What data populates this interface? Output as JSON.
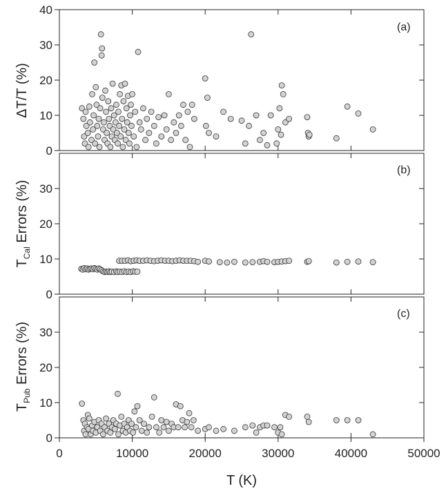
{
  "chart_data": [
    {
      "type": "scatter",
      "panel_label": "(a)",
      "ylabel_main": "ΔT/T (%)",
      "ylim": [
        0,
        40
      ],
      "yticks": [
        0,
        10,
        20,
        30,
        40
      ],
      "xlim": [
        0,
        50000
      ],
      "points": [
        [
          3100,
          12
        ],
        [
          3300,
          9
        ],
        [
          3400,
          4
        ],
        [
          3500,
          2
        ],
        [
          3600,
          11
        ],
        [
          3700,
          7
        ],
        [
          3900,
          5
        ],
        [
          4000,
          1
        ],
        [
          4100,
          12.5
        ],
        [
          4200,
          8
        ],
        [
          4400,
          3
        ],
        [
          4500,
          16
        ],
        [
          4600,
          6
        ],
        [
          4700,
          10
        ],
        [
          4800,
          25
        ],
        [
          4900,
          2
        ],
        [
          5000,
          18
        ],
        [
          5100,
          13
        ],
        [
          5200,
          7
        ],
        [
          5300,
          4
        ],
        [
          5400,
          9
        ],
        [
          5500,
          1
        ],
        [
          5600,
          12
        ],
        [
          5700,
          33
        ],
        [
          5800,
          27
        ],
        [
          5850,
          29
        ],
        [
          5900,
          15
        ],
        [
          6000,
          6
        ],
        [
          6100,
          8
        ],
        [
          6200,
          3
        ],
        [
          6300,
          17
        ],
        [
          6400,
          11
        ],
        [
          6500,
          5
        ],
        [
          6600,
          2
        ],
        [
          6700,
          14
        ],
        [
          6800,
          9
        ],
        [
          6900,
          7
        ],
        [
          7000,
          1
        ],
        [
          7100,
          12
        ],
        [
          7200,
          4
        ],
        [
          7300,
          19
        ],
        [
          7400,
          6
        ],
        [
          7500,
          10
        ],
        [
          7600,
          3
        ],
        [
          7700,
          8
        ],
        [
          7800,
          13
        ],
        [
          7900,
          5
        ],
        [
          8000,
          2
        ],
        [
          8100,
          11
        ],
        [
          8200,
          7
        ],
        [
          8300,
          16
        ],
        [
          8400,
          4
        ],
        [
          8500,
          18.5
        ],
        [
          8600,
          9
        ],
        [
          8700,
          1
        ],
        [
          8800,
          14
        ],
        [
          8900,
          6
        ],
        [
          9000,
          19
        ],
        [
          9100,
          3
        ],
        [
          9200,
          12
        ],
        [
          9300,
          8
        ],
        [
          9400,
          15.5
        ],
        [
          9500,
          5
        ],
        [
          9600,
          2
        ],
        [
          9700,
          10
        ],
        [
          9800,
          13
        ],
        [
          9900,
          7
        ],
        [
          10000,
          16
        ],
        [
          10200,
          4
        ],
        [
          10400,
          11
        ],
        [
          10600,
          1
        ],
        [
          10800,
          28
        ],
        [
          11000,
          8
        ],
        [
          11200,
          6
        ],
        [
          11500,
          12
        ],
        [
          11800,
          3
        ],
        [
          12000,
          9
        ],
        [
          12300,
          5
        ],
        [
          12600,
          11
        ],
        [
          13000,
          7
        ],
        [
          13300,
          2
        ],
        [
          13600,
          9.5
        ],
        [
          14000,
          4
        ],
        [
          14400,
          10
        ],
        [
          14700,
          6
        ],
        [
          15000,
          16
        ],
        [
          15300,
          3
        ],
        [
          15700,
          8
        ],
        [
          16000,
          5
        ],
        [
          16400,
          10
        ],
        [
          16700,
          7
        ],
        [
          17000,
          13
        ],
        [
          17300,
          3
        ],
        [
          17600,
          11
        ],
        [
          17900,
          1
        ],
        [
          18200,
          13
        ],
        [
          18500,
          9
        ],
        [
          20000,
          20.5
        ],
        [
          20100,
          7
        ],
        [
          20300,
          15
        ],
        [
          20500,
          5
        ],
        [
          21500,
          4
        ],
        [
          22500,
          11
        ],
        [
          23500,
          9
        ],
        [
          25000,
          8.5
        ],
        [
          25500,
          2
        ],
        [
          26000,
          7
        ],
        [
          26300,
          33
        ],
        [
          27000,
          10
        ],
        [
          27500,
          3
        ],
        [
          28000,
          5
        ],
        [
          28500,
          1.5
        ],
        [
          29000,
          10
        ],
        [
          29800,
          2
        ],
        [
          30000,
          6
        ],
        [
          30200,
          12
        ],
        [
          30400,
          4.5
        ],
        [
          30500,
          18.5
        ],
        [
          30700,
          16
        ],
        [
          31000,
          8
        ],
        [
          31500,
          9
        ],
        [
          34000,
          9.5
        ],
        [
          34100,
          5
        ],
        [
          34200,
          4
        ],
        [
          34300,
          4.5
        ],
        [
          38000,
          3.5
        ],
        [
          39500,
          12.5
        ],
        [
          41000,
          10.5
        ],
        [
          43000,
          6
        ]
      ]
    },
    {
      "type": "scatter",
      "panel_label": "(b)",
      "ylabel_main": "T",
      "ylabel_sub": "Cal",
      "ylabel_rest": " Errors (%)",
      "ylim": [
        0,
        40
      ],
      "yticks": [
        0,
        10,
        20,
        30
      ],
      "xlim": [
        0,
        50000
      ],
      "points": [
        [
          3000,
          7.2
        ],
        [
          3200,
          7
        ],
        [
          3400,
          7.4
        ],
        [
          3600,
          7.1
        ],
        [
          3800,
          7.3
        ],
        [
          4000,
          7
        ],
        [
          4200,
          7.2
        ],
        [
          4400,
          7.3
        ],
        [
          4600,
          7.1
        ],
        [
          4800,
          7.4
        ],
        [
          5000,
          7.2
        ],
        [
          5200,
          7
        ],
        [
          5400,
          7.3
        ],
        [
          5600,
          7.1
        ],
        [
          5800,
          6.8
        ],
        [
          6000,
          6.5
        ],
        [
          6200,
          6.3
        ],
        [
          6400,
          6.4
        ],
        [
          6600,
          6.3
        ],
        [
          6800,
          6.5
        ],
        [
          7000,
          6.3
        ],
        [
          7200,
          6.4
        ],
        [
          7500,
          6.3
        ],
        [
          7800,
          6.5
        ],
        [
          8000,
          6.3
        ],
        [
          8300,
          6.4
        ],
        [
          8600,
          6.3
        ],
        [
          8900,
          6.5
        ],
        [
          9200,
          6.3
        ],
        [
          9500,
          6.4
        ],
        [
          9800,
          6.3
        ],
        [
          10100,
          6.5
        ],
        [
          10400,
          6.4
        ],
        [
          10700,
          6.4
        ],
        [
          8200,
          9.5
        ],
        [
          8600,
          9.5
        ],
        [
          9000,
          9.5
        ],
        [
          9400,
          9.6
        ],
        [
          9800,
          9.4
        ],
        [
          10200,
          9.5
        ],
        [
          10600,
          9.6
        ],
        [
          11000,
          9.5
        ],
        [
          11500,
          9.5
        ],
        [
          12000,
          9.6
        ],
        [
          12500,
          9.5
        ],
        [
          13000,
          9.4
        ],
        [
          13500,
          9.5
        ],
        [
          14000,
          9.6
        ],
        [
          14500,
          9.5
        ],
        [
          15000,
          9.5
        ],
        [
          15500,
          9.4
        ],
        [
          16000,
          9.5
        ],
        [
          16500,
          9.6
        ],
        [
          17000,
          9.5
        ],
        [
          17500,
          9.5
        ],
        [
          18000,
          9.5
        ],
        [
          18500,
          9.4
        ],
        [
          19000,
          9.2
        ],
        [
          20000,
          9.5
        ],
        [
          20500,
          9.3
        ],
        [
          22000,
          9.1
        ],
        [
          23000,
          9
        ],
        [
          24000,
          9.2
        ],
        [
          25500,
          9
        ],
        [
          26500,
          9.1
        ],
        [
          27500,
          9.2
        ],
        [
          28000,
          9.4
        ],
        [
          28500,
          9.2
        ],
        [
          29500,
          9.1
        ],
        [
          30000,
          9.2
        ],
        [
          30500,
          9.3
        ],
        [
          31000,
          9.4
        ],
        [
          31500,
          9.5
        ],
        [
          34000,
          9.2
        ],
        [
          34200,
          9.4
        ],
        [
          38000,
          9
        ],
        [
          39500,
          9.2
        ],
        [
          41000,
          9.3
        ],
        [
          43000,
          9.1
        ]
      ]
    },
    {
      "type": "scatter",
      "panel_label": "(c)",
      "ylabel_main": "T",
      "ylabel_sub": "Pub",
      "ylabel_rest": " Errors (%)",
      "ylim": [
        0,
        40
      ],
      "yticks": [
        0,
        10,
        20,
        30
      ],
      "xlim": [
        0,
        50000
      ],
      "xticks": [
        0,
        10000,
        20000,
        30000,
        40000,
        50000
      ],
      "xlabel": "T (K)",
      "points": [
        [
          3100,
          9.7
        ],
        [
          3300,
          5
        ],
        [
          3400,
          2
        ],
        [
          3500,
          4
        ],
        [
          3600,
          1
        ],
        [
          3800,
          3
        ],
        [
          3900,
          6.5
        ],
        [
          4000,
          2.5
        ],
        [
          4100,
          5.5
        ],
        [
          4300,
          1
        ],
        [
          4500,
          3.5
        ],
        [
          4600,
          2
        ],
        [
          4800,
          4.5
        ],
        [
          5000,
          1.5
        ],
        [
          5200,
          3
        ],
        [
          5400,
          5
        ],
        [
          5600,
          2
        ],
        [
          5800,
          4
        ],
        [
          6000,
          1
        ],
        [
          6200,
          3
        ],
        [
          6400,
          5.5
        ],
        [
          6600,
          2
        ],
        [
          6800,
          4
        ],
        [
          7000,
          1.5
        ],
        [
          7200,
          3
        ],
        [
          7400,
          5
        ],
        [
          7600,
          2.5
        ],
        [
          7800,
          4
        ],
        [
          8000,
          12.5
        ],
        [
          8100,
          1
        ],
        [
          8300,
          3.5
        ],
        [
          8500,
          6
        ],
        [
          8700,
          2
        ],
        [
          8900,
          4
        ],
        [
          9100,
          1.5
        ],
        [
          9300,
          3
        ],
        [
          9500,
          5
        ],
        [
          9700,
          2
        ],
        [
          9900,
          4
        ],
        [
          10100,
          1.5
        ],
        [
          10300,
          7.5
        ],
        [
          10500,
          3
        ],
        [
          10700,
          9
        ],
        [
          11000,
          5
        ],
        [
          11300,
          2
        ],
        [
          11600,
          4
        ],
        [
          12000,
          1.5
        ],
        [
          12300,
          3
        ],
        [
          12700,
          6
        ],
        [
          13000,
          11.5
        ],
        [
          13300,
          3
        ],
        [
          13700,
          1.5
        ],
        [
          14000,
          5
        ],
        [
          14300,
          3
        ],
        [
          14700,
          4.5
        ],
        [
          15000,
          2
        ],
        [
          15400,
          4
        ],
        [
          15700,
          3
        ],
        [
          16000,
          9.5
        ],
        [
          16300,
          3
        ],
        [
          16600,
          9
        ],
        [
          16900,
          5
        ],
        [
          17200,
          3
        ],
        [
          17500,
          4.5
        ],
        [
          17800,
          7
        ],
        [
          18100,
          3
        ],
        [
          18400,
          5
        ],
        [
          19000,
          2
        ],
        [
          20000,
          2.5
        ],
        [
          20500,
          3
        ],
        [
          21500,
          2
        ],
        [
          22500,
          2.5
        ],
        [
          24000,
          2
        ],
        [
          25500,
          3
        ],
        [
          26500,
          3.5
        ],
        [
          27000,
          1.5
        ],
        [
          27500,
          3
        ],
        [
          28000,
          3.5
        ],
        [
          28500,
          3.5
        ],
        [
          29500,
          3
        ],
        [
          30000,
          1.5
        ],
        [
          30300,
          3
        ],
        [
          30500,
          1
        ],
        [
          31000,
          6.5
        ],
        [
          31500,
          6
        ],
        [
          34000,
          6
        ],
        [
          34200,
          4.5
        ],
        [
          38000,
          5
        ],
        [
          39500,
          5
        ],
        [
          41000,
          5
        ],
        [
          43000,
          1
        ]
      ]
    }
  ]
}
